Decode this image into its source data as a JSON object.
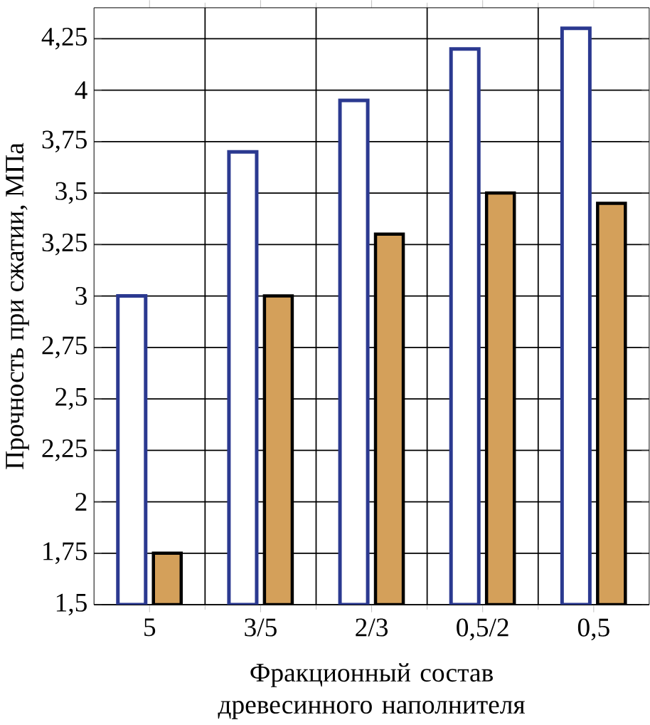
{
  "chart_data": {
    "type": "bar",
    "xlabel": "Фракционный состав древесинного наполнителя",
    "ylabel": "Прочность при сжатии, МПа",
    "categories": [
      "5",
      "3/5",
      "2/3",
      "0,5/2",
      "0,5"
    ],
    "series": [
      {
        "color": "#ffffff",
        "values": [
          3.0,
          3.7,
          3.95,
          4.2,
          4.3
        ]
      },
      {
        "color": "#d4a05a",
        "values": [
          1.75,
          3.0,
          3.3,
          3.5,
          3.45
        ]
      }
    ],
    "ylim": [
      1.5,
      4.4
    ],
    "yticks": [
      {
        "value": 1.5,
        "label": "1,5"
      },
      {
        "value": 1.75,
        "label": "1,75"
      },
      {
        "value": 2,
        "label": "2"
      },
      {
        "value": 2.25,
        "label": "2,25"
      },
      {
        "value": 2.5,
        "label": "2,5"
      },
      {
        "value": 2.75,
        "label": "2,75"
      },
      {
        "value": 3,
        "label": "3"
      },
      {
        "value": 3.25,
        "label": "3,25"
      },
      {
        "value": 3.5,
        "label": "3,5"
      },
      {
        "value": 3.75,
        "label": "3,75"
      },
      {
        "value": 4,
        "label": "4"
      },
      {
        "value": 4.25,
        "label": "4,25"
      }
    ],
    "grid": true
  }
}
